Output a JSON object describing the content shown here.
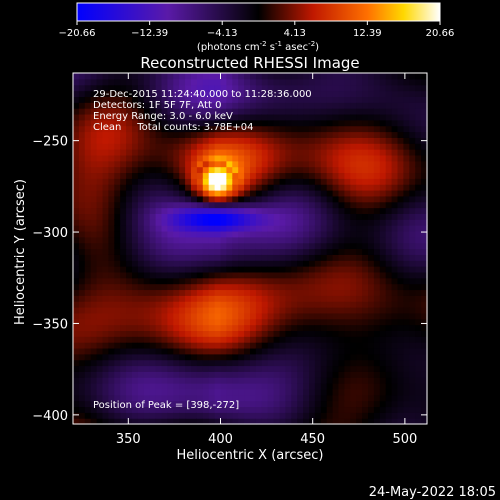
{
  "colorbar": {
    "ticks": [
      "-20.66",
      "-12.39",
      "-4.13",
      "4.13",
      "12.39",
      "20.66"
    ],
    "unit_main": "(photons cm",
    "unit_exp1": "-2",
    "unit_mid": " s",
    "unit_exp2": "-1",
    "unit_mid2": " asec",
    "unit_exp3": "-2",
    "unit_end": ")"
  },
  "chart_data": {
    "type": "heatmap",
    "title": "Reconstructed RHESSI Image",
    "xlabel": "Heliocentric X (arcsec)",
    "ylabel": "Heliocentric Y (arcsec)",
    "xlim": [
      320,
      512
    ],
    "ylim": [
      -405,
      -213
    ],
    "x_ticks": [
      350,
      400,
      450,
      500
    ],
    "y_ticks": [
      -250,
      -300,
      -350,
      -400
    ],
    "x_tick_labels": [
      "350",
      "400",
      "450",
      "500"
    ],
    "y_tick_labels": [
      "−250",
      "−300",
      "−350",
      "−400"
    ],
    "value_range": [
      -20.66,
      20.66
    ],
    "peak": [
      398,
      -272
    ],
    "colormap": "rhessi-bipolar (blue-purple-black-red-yellow-white)",
    "annotations": [
      "29-Dec-2015 11:24:40.000 to 11:28:36.000",
      "Detectors: 1F 5F 7F, Att 0",
      "Energy Range: 3.0 - 6.0 keV",
      "Clean     Total counts: 3.78E+04",
      "Position of Peak = [398,-272]"
    ]
  },
  "footer": {
    "timestamp": "24-May-2022 18:05"
  }
}
